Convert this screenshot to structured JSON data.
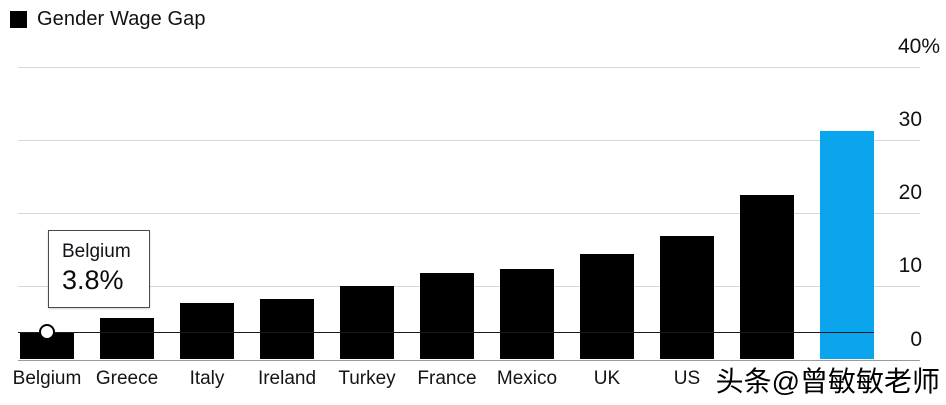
{
  "legend": {
    "label": "Gender Wage Gap",
    "swatch_color": "#000000"
  },
  "tooltip": {
    "country": "Belgium",
    "value": "3.8%"
  },
  "watermark": "头条@曾敏敏老师",
  "colors": {
    "bar": "#000000",
    "highlight_bar": "#0aa5ec",
    "gridline": "#d8d8d8",
    "baseline": "#9a9a9a",
    "reference_line": "#1a1a1a",
    "text": "#121212",
    "background": "#ffffff"
  },
  "chart_data": {
    "type": "bar",
    "title": "Gender Wage Gap",
    "categories": [
      "Belgium",
      "Greece",
      "Italy",
      "Ireland",
      "Turkey",
      "France",
      "Mexico",
      "UK",
      "US",
      "",
      ""
    ],
    "values": [
      3.8,
      5.7,
      7.7,
      8.3,
      10,
      11.8,
      12.4,
      14.4,
      16.9,
      22.4,
      31.2
    ],
    "highlight_index": 10,
    "xlabel": "",
    "ylabel": "",
    "ylim": [
      0,
      40
    ],
    "yticks": [
      {
        "label": "40%",
        "value": 40
      },
      {
        "label": "30",
        "value": 30
      },
      {
        "label": "20",
        "value": 20
      },
      {
        "label": "10",
        "value": 10
      },
      {
        "label": "0",
        "value": 0
      }
    ],
    "grid": "horizontal",
    "legend_position": "top-left",
    "legend_entries": [
      "Gender Wage Gap"
    ],
    "reference_line": {
      "value": 3.8,
      "label": "Belgium 3.8%"
    },
    "marker": {
      "category": "Belgium",
      "category_index": 0,
      "value": 3.8,
      "style": "open-circle"
    },
    "notes": "last two category labels obscured by watermark; final bar highlighted in blue"
  }
}
